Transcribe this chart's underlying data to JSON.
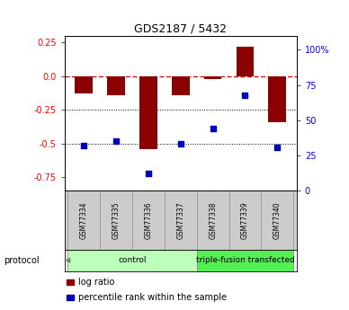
{
  "title": "GDS2187 / 5432",
  "samples": [
    "GSM77334",
    "GSM77335",
    "GSM77336",
    "GSM77337",
    "GSM77338",
    "GSM77339",
    "GSM77340"
  ],
  "log_ratio": [
    -0.13,
    -0.14,
    -0.54,
    -0.145,
    -0.02,
    0.22,
    -0.34
  ],
  "percentile_rank": [
    32,
    35,
    12,
    33,
    44,
    68,
    31
  ],
  "groups": [
    {
      "label": "control",
      "indices": [
        0,
        1,
        2,
        3
      ],
      "color": "#bbffbb"
    },
    {
      "label": "triple-fusion transfected",
      "indices": [
        4,
        5,
        6
      ],
      "color": "#55ee55"
    }
  ],
  "ylim_left": [
    -0.85,
    0.3
  ],
  "ylim_right": [
    0,
    110
  ],
  "left_ticks": [
    0.25,
    0.0,
    -0.25,
    -0.5,
    -0.75
  ],
  "right_ticks": [
    100,
    75,
    50,
    25,
    0
  ],
  "bar_color": "#8b0000",
  "dot_color": "#0000bb",
  "zero_line_color": "#cc0000",
  "grid_color": "#000000",
  "bar_width": 0.55,
  "legend_bar_label": "log ratio",
  "legend_dot_label": "percentile rank within the sample",
  "sample_box_color": "#cccccc",
  "sample_box_edge": "#999999"
}
